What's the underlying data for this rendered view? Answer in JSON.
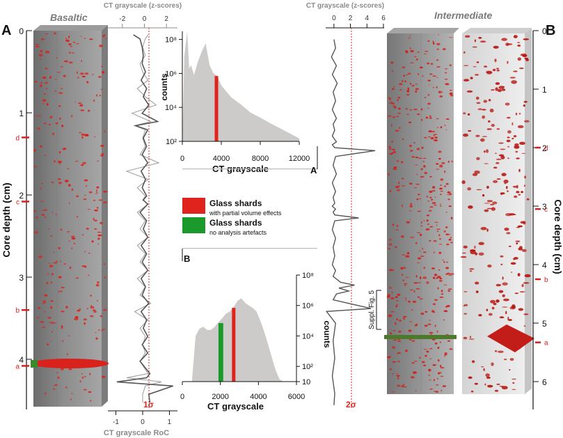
{
  "colors": {
    "glass_red": "#e0231c",
    "glass_green": "#1a9a2a",
    "hist_gray": "#cdcaca",
    "core_gray": "#8c8c8c",
    "marker_red": "#d71f1f",
    "axis_gray": "#8a8a8a",
    "trace_dark": "#555555",
    "trace_light": "#9a9a9a"
  },
  "panel_a": {
    "label": "A",
    "title": "Basaltic",
    "depth_axis_label": "Core depth (cm)",
    "depth_ticks": [
      "0",
      "1",
      "2",
      "3",
      "4"
    ],
    "event_markers": [
      "d",
      "c",
      "b",
      "a"
    ],
    "zscore_axis_label": "CT grayscale (z-scores)",
    "zscore_ticks": [
      "-2",
      "0",
      "2"
    ],
    "roc_axis_label": "CT grayscale RoC",
    "roc_ticks": [
      "-1",
      "0",
      "1"
    ],
    "sigma_label": "1σ"
  },
  "panel_b": {
    "label": "B",
    "title": "Intermediate",
    "depth_axis_label": "Core depth (cm)",
    "depth_ticks": [
      "0",
      "1",
      "2",
      "3",
      "4",
      "5",
      "6"
    ],
    "event_markers": [
      "d",
      "c",
      "b",
      "a"
    ],
    "zscore_axis_label": "CT grayscale (z-scores)",
    "zscore_ticks": [
      "0",
      "2",
      "4",
      "6"
    ],
    "sigma_label": "2σ",
    "suppl_label": "Suppl. Fig. 5"
  },
  "legend": {
    "items": [
      {
        "title": "Glass shards",
        "subtitle": "with partial volume effects",
        "color": "#e0231c"
      },
      {
        "title": "Glass shards",
        "subtitle": "no analysis artefacts",
        "color": "#1a9a2a"
      }
    ]
  },
  "chart_data": [
    {
      "type": "area",
      "id": "histogram-a",
      "panel_tag": "A",
      "xlabel": "CT grayscale",
      "ylabel": "counts",
      "xlim": [
        0,
        12000
      ],
      "ylim": [
        100,
        300000000
      ],
      "yscale": "log",
      "xticks": [
        "0",
        "4000",
        "8000",
        "12000"
      ],
      "yticks": [
        "10²",
        "10⁴",
        "10⁶",
        "10⁸"
      ],
      "x": [
        0,
        200,
        500,
        700,
        900,
        1200,
        1600,
        2000,
        2400,
        2800,
        3200,
        3600,
        4000,
        5000,
        6000,
        7000,
        8000,
        9000,
        10000,
        11000,
        12000
      ],
      "y": [
        100,
        10000000,
        300000000,
        2000000,
        3000000,
        800000,
        5000000,
        20000000,
        60000000,
        3000000,
        1000000,
        700000,
        200000,
        40000,
        15000,
        5000,
        2500,
        1200,
        600,
        300,
        150
      ],
      "highlight": {
        "x": 3500,
        "color": "#e0231c"
      }
    },
    {
      "type": "area",
      "id": "histogram-b",
      "panel_tag": "B",
      "xlabel": "CT grayscale",
      "ylabel": "counts",
      "xlim": [
        0,
        6000
      ],
      "ylim": [
        10,
        100000000
      ],
      "yscale": "log",
      "xticks": [
        "0",
        "2000",
        "4000",
        "6000"
      ],
      "yticks": [
        "10",
        "10²",
        "10⁴",
        "10⁶",
        "10⁸"
      ],
      "x": [
        500,
        700,
        900,
        1100,
        1300,
        1500,
        1700,
        1900,
        2100,
        2300,
        2500,
        2700,
        2900,
        3100,
        3300,
        3500,
        3700,
        3900,
        4100,
        4300,
        4500,
        4700,
        4900,
        5100,
        5300
      ],
      "y": [
        10,
        10000,
        30000,
        40000,
        25000,
        25000,
        40000,
        80000,
        150000,
        300000,
        400000,
        800000,
        2000000,
        3000000,
        1500000,
        1000000,
        700000,
        400000,
        100000,
        20000,
        3000,
        400,
        60,
        15,
        10
      ],
      "highlight_green": {
        "x0": 1900,
        "x1": 2150,
        "color": "#1a9a2a"
      },
      "highlight_red": {
        "x": 2700,
        "color": "#e0231c"
      }
    },
    {
      "type": "line",
      "id": "zscore-trace-a",
      "xlabel": "CT grayscale (z-scores)",
      "ylabel": "Core depth (cm)",
      "xlim": [
        -3,
        3
      ],
      "ylim": [
        0,
        4.55
      ],
      "threshold_x": 1.0,
      "threshold_label": "1σ",
      "series": [
        {
          "role": "z-score",
          "x": [
            -1.0,
            -0.4,
            -0.2,
            -0.1,
            -0.2,
            0.1,
            -0.3,
            0.2,
            -0.1,
            0.4,
            -0.2,
            1.2,
            -0.8,
            0.3,
            -0.1,
            0.2,
            -0.2,
            0.3,
            -0.3,
            0.1,
            -0.2,
            0.2,
            -0.1,
            0.3,
            -0.4,
            0.2,
            -0.1,
            0.3,
            -0.3,
            0.2,
            -0.2,
            0.3,
            -0.3,
            0.1,
            -0.2,
            0.4,
            -0.3,
            0.2,
            -0.1,
            0.3,
            -0.2,
            0.3,
            -0.4,
            0.2,
            0.5,
            0.2,
            -2.5,
            2.6,
            0.4,
            0.5
          ],
          "y": [
            0.05,
            0.1,
            0.2,
            0.3,
            0.4,
            0.5,
            0.6,
            0.7,
            0.8,
            0.9,
            1.0,
            1.1,
            1.15,
            1.2,
            1.3,
            1.4,
            1.5,
            1.6,
            1.7,
            1.8,
            1.9,
            2.0,
            2.05,
            2.1,
            2.2,
            2.3,
            2.4,
            2.5,
            2.6,
            2.7,
            2.8,
            2.9,
            3.0,
            3.1,
            3.2,
            3.3,
            3.4,
            3.5,
            3.6,
            3.7,
            3.8,
            3.9,
            4.0,
            4.1,
            4.15,
            4.2,
            4.25,
            4.3,
            4.4,
            4.5
          ]
        },
        {
          "role": "rate-of-change",
          "x": [
            0.2,
            0.1,
            0.0,
            0.1,
            -0.1,
            0.0,
            0.2,
            -0.2,
            0.1,
            0.5,
            -0.4,
            0.3,
            -0.3,
            0.1,
            0.0,
            0.1,
            -0.1,
            0.6,
            -0.6,
            0.2,
            -0.2,
            0.1,
            0.0,
            0.2,
            -0.2,
            0.1,
            -0.1,
            0.2,
            -0.2,
            0.1,
            -0.1,
            0.2,
            -0.2,
            0.1,
            -0.1,
            0.3,
            -0.3,
            0.2,
            -0.1,
            0.1,
            0.0,
            0.1,
            -0.1,
            0.1,
            0.2,
            -0.6,
            0.7,
            0.1,
            0.0,
            0.0
          ],
          "y": [
            0.05,
            0.1,
            0.2,
            0.3,
            0.4,
            0.5,
            0.6,
            0.7,
            0.8,
            0.9,
            1.0,
            1.1,
            1.15,
            1.2,
            1.3,
            1.4,
            1.5,
            1.6,
            1.7,
            1.8,
            1.9,
            2.0,
            2.05,
            2.1,
            2.2,
            2.3,
            2.4,
            2.5,
            2.6,
            2.7,
            2.8,
            2.9,
            3.0,
            3.1,
            3.2,
            3.3,
            3.4,
            3.5,
            3.6,
            3.7,
            3.8,
            3.9,
            4.0,
            4.1,
            4.15,
            4.2,
            4.25,
            4.3,
            4.4,
            4.5
          ]
        }
      ]
    },
    {
      "type": "line",
      "id": "zscore-trace-b",
      "xlabel": "CT grayscale (z-scores)",
      "ylabel": "Core depth (cm)",
      "xlim": [
        -1,
        6
      ],
      "ylim": [
        0,
        6.45
      ],
      "threshold_x": 2.0,
      "threshold_label": "2σ",
      "series": [
        {
          "role": "z-score",
          "x": [
            0.0,
            0.2,
            -0.3,
            0.3,
            -0.2,
            0.4,
            -0.1,
            0.2,
            -0.2,
            0.3,
            -0.1,
            0.1,
            -0.2,
            0.3,
            -0.2,
            0.1,
            5.0,
            0.2,
            -0.1,
            0.3,
            -0.2,
            0.2,
            -0.1,
            0.1,
            -0.2,
            0.2,
            -0.1,
            0.1,
            3.0,
            0.1,
            -0.2,
            0.2,
            -0.1,
            0.1,
            -0.2,
            0.2,
            -0.1,
            0.8,
            2.5,
            0.6,
            1.8,
            0.3,
            -0.1,
            4.5,
            -0.9,
            0.2,
            -0.1,
            0.1,
            -0.2,
            0.1,
            0.0
          ],
          "y": [
            0.15,
            0.3,
            0.45,
            0.6,
            0.75,
            0.9,
            1.05,
            1.2,
            1.35,
            1.5,
            1.6,
            1.7,
            1.8,
            1.9,
            1.95,
            2.0,
            2.05,
            2.15,
            2.3,
            2.45,
            2.6,
            2.75,
            2.85,
            2.95,
            3.0,
            3.05,
            3.1,
            3.15,
            3.2,
            3.25,
            3.4,
            3.55,
            3.7,
            3.85,
            4.0,
            4.1,
            4.2,
            4.3,
            4.35,
            4.4,
            4.45,
            4.5,
            4.6,
            4.75,
            4.8,
            5.0,
            5.3,
            5.6,
            5.9,
            6.2,
            6.4
          ]
        }
      ]
    }
  ]
}
